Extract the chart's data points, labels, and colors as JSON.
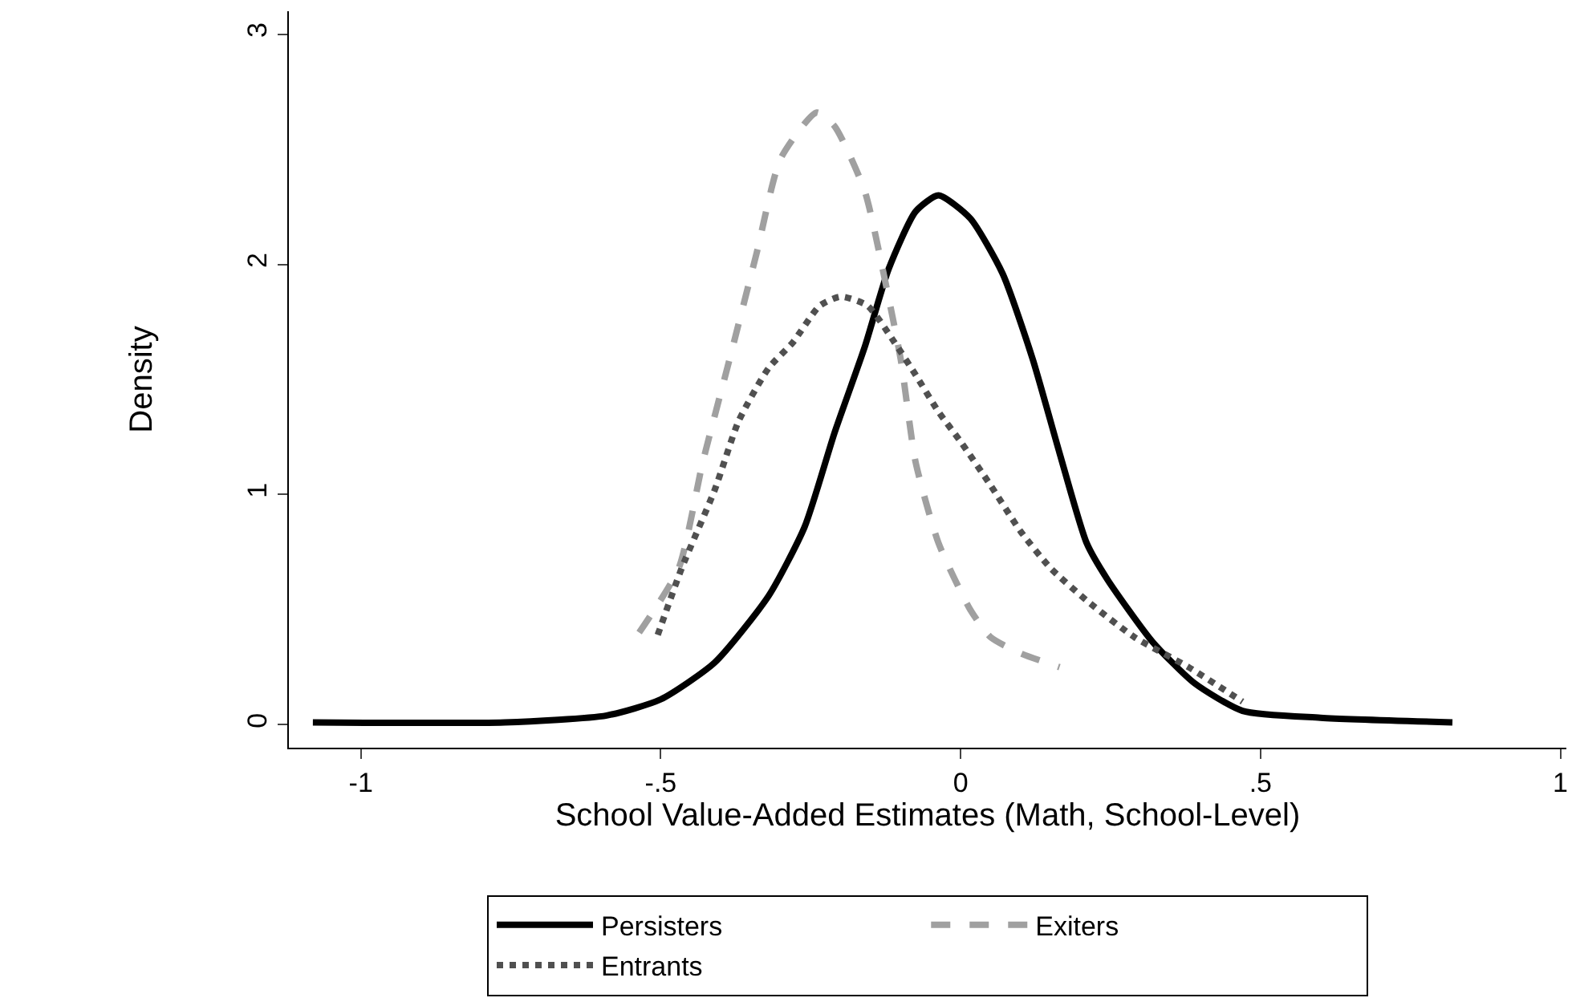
{
  "chart_data": {
    "type": "line",
    "xlabel": "School Value-Added Estimates (Math, School-Level)",
    "ylabel": "Density",
    "xlim": [
      -1.12,
      1.01
    ],
    "ylim": [
      -0.1,
      3.1
    ],
    "xticks": [
      {
        "value": -1,
        "label": "-1"
      },
      {
        "value": -0.5,
        "label": "-.5"
      },
      {
        "value": 0,
        "label": "0"
      },
      {
        "value": 0.5,
        "label": ".5"
      },
      {
        "value": 1,
        "label": "1"
      }
    ],
    "yticks": [
      0,
      1,
      2,
      3
    ],
    "legend": "bottom",
    "marker": "none",
    "series": [
      {
        "name": "Persisters",
        "color": "#000000",
        "line_style": "solid",
        "x": [
          -1.08,
          -0.76,
          -0.59,
          -0.5,
          -0.41,
          -0.32,
          -0.26,
          -0.21,
          -0.16,
          -0.12,
          -0.075,
          -0.037,
          0.016,
          0.07,
          0.12,
          0.165,
          0.21,
          0.245,
          0.32,
          0.39,
          0.47,
          0.6,
          0.82
        ],
        "values": [
          0.01,
          0.01,
          0.04,
          0.11,
          0.27,
          0.56,
          0.86,
          1.27,
          1.64,
          1.98,
          2.23,
          2.3,
          2.2,
          1.96,
          1.59,
          1.18,
          0.79,
          0.63,
          0.36,
          0.18,
          0.06,
          0.03,
          0.01
        ]
      },
      {
        "name": "Exiters",
        "color": "#a0a0a0",
        "line_style": "dashed",
        "x": [
          -0.536,
          -0.47,
          -0.43,
          -0.385,
          -0.34,
          -0.3,
          -0.24,
          -0.21,
          -0.16,
          -0.13,
          -0.1,
          -0.075,
          -0.037,
          0.016,
          0.05,
          0.1,
          0.165
        ],
        "values": [
          0.4,
          0.68,
          1.14,
          1.59,
          2.05,
          2.46,
          2.66,
          2.6,
          2.32,
          1.98,
          1.59,
          1.14,
          0.79,
          0.5,
          0.38,
          0.31,
          0.25
        ]
      },
      {
        "name": "Entrants",
        "color": "#505050",
        "line_style": "dotted",
        "x": [
          -0.505,
          -0.465,
          -0.41,
          -0.37,
          -0.32,
          -0.28,
          -0.235,
          -0.2,
          -0.155,
          -0.11,
          -0.075,
          -0.037,
          0,
          0.05,
          0.1,
          0.15,
          0.21,
          0.29,
          0.38,
          0.47
        ],
        "values": [
          0.39,
          0.68,
          1.02,
          1.32,
          1.55,
          1.66,
          1.82,
          1.86,
          1.82,
          1.66,
          1.52,
          1.36,
          1.23,
          1.04,
          0.84,
          0.68,
          0.54,
          0.38,
          0.25,
          0.1
        ]
      }
    ]
  }
}
